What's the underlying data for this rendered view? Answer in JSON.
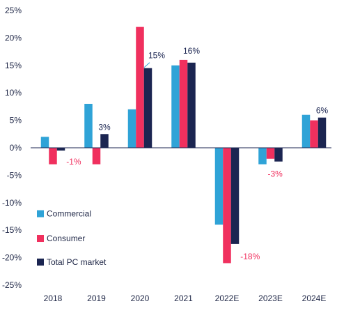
{
  "chart_data": {
    "type": "bar",
    "categories": [
      "2018",
      "2019",
      "2020",
      "2021",
      "2022E",
      "2023E",
      "2024E"
    ],
    "series": [
      {
        "name": "Commercial",
        "color": "#2fa3d7",
        "values": [
          2,
          8,
          7,
          15,
          -14,
          -3,
          6
        ]
      },
      {
        "name": "Consumer",
        "color": "#f0305e",
        "values": [
          -3,
          -3,
          22,
          16,
          -21,
          -2,
          5
        ]
      },
      {
        "name": "Total PC market",
        "color": "#1b2551",
        "values": [
          -0.5,
          2.5,
          14.5,
          15.5,
          -17.5,
          -2.5,
          5.5
        ]
      }
    ],
    "ylim": [
      -25,
      25
    ],
    "yticks": [
      "25%",
      "20%",
      "15%",
      "10%",
      "5%",
      "0%",
      "-5%",
      "-10%",
      "-15%",
      "-20%",
      "-25%"
    ],
    "data_labels": [
      {
        "category": "2018",
        "text": "-1%",
        "color": "#f0305e"
      },
      {
        "category": "2019",
        "text": "3%",
        "color": "#1b2551"
      },
      {
        "category": "2020",
        "text": "15%",
        "color": "#1b2551"
      },
      {
        "category": "2021",
        "text": "16%",
        "color": "#1b2551"
      },
      {
        "category": "2022E",
        "text": "-18%",
        "color": "#f0305e"
      },
      {
        "category": "2023E",
        "text": "-3%",
        "color": "#f0305e"
      },
      {
        "category": "2024E",
        "text": "6%",
        "color": "#1b2551"
      }
    ],
    "legend_placement": "left",
    "grid": false,
    "axis_color": "#1b2551",
    "text_color": "#1d2545"
  }
}
